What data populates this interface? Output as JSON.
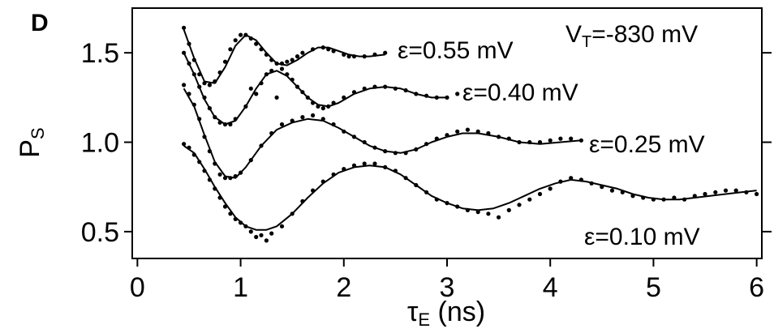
{
  "panel_label": "D",
  "chart_data": {
    "type": "scatter",
    "title": "",
    "xlabel": {
      "symbol": "τ",
      "subscript": "E",
      "unit": " (ns)"
    },
    "ylabel": {
      "symbol": "P",
      "subscript": "S"
    },
    "xlim": [
      -0.05,
      6.05
    ],
    "ylim": [
      0.35,
      1.75
    ],
    "xticks": [
      0,
      1,
      2,
      3,
      4,
      5,
      6
    ],
    "xtick_labels": [
      "0",
      "1",
      "2",
      "3",
      "4",
      "5",
      "6"
    ],
    "yticks": [
      0.5,
      1.0,
      1.5
    ],
    "ytick_labels": [
      "0.5",
      "1.0",
      "1.5"
    ],
    "grid": false,
    "annotations": {
      "vt": {
        "prefix": "V",
        "subscript": "T",
        "value": "=-830 mV"
      }
    },
    "series": [
      {
        "name": "ε=0.55 mV",
        "points": [
          [
            0.45,
            1.64
          ],
          [
            0.5,
            1.55
          ],
          [
            0.55,
            1.46
          ],
          [
            0.6,
            1.38
          ],
          [
            0.65,
            1.33
          ],
          [
            0.7,
            1.32
          ],
          [
            0.75,
            1.34
          ],
          [
            0.8,
            1.39
          ],
          [
            0.85,
            1.45
          ],
          [
            0.9,
            1.52
          ],
          [
            0.95,
            1.57
          ],
          [
            1.0,
            1.6
          ],
          [
            1.05,
            1.6
          ],
          [
            1.1,
            1.58
          ],
          [
            1.15,
            1.55
          ],
          [
            1.2,
            1.52
          ],
          [
            1.25,
            1.49
          ],
          [
            1.3,
            1.46
          ],
          [
            1.35,
            1.44
          ],
          [
            1.4,
            1.44
          ],
          [
            1.45,
            1.45
          ],
          [
            1.5,
            1.46
          ],
          [
            1.55,
            1.48
          ],
          [
            1.6,
            1.5
          ],
          [
            1.7,
            1.52
          ],
          [
            1.8,
            1.53
          ],
          [
            1.85,
            1.52
          ],
          [
            1.9,
            1.51
          ],
          [
            2.0,
            1.49
          ],
          [
            2.05,
            1.48
          ],
          [
            2.1,
            1.48
          ],
          [
            2.2,
            1.48
          ],
          [
            2.3,
            1.49
          ],
          [
            2.4,
            1.5
          ]
        ],
        "fit": [
          [
            0.45,
            1.63
          ],
          [
            0.55,
            1.47
          ],
          [
            0.65,
            1.34
          ],
          [
            0.75,
            1.33
          ],
          [
            0.85,
            1.42
          ],
          [
            0.95,
            1.54
          ],
          [
            1.05,
            1.6
          ],
          [
            1.15,
            1.57
          ],
          [
            1.25,
            1.5
          ],
          [
            1.35,
            1.44
          ],
          [
            1.45,
            1.43
          ],
          [
            1.55,
            1.46
          ],
          [
            1.65,
            1.5
          ],
          [
            1.75,
            1.53
          ],
          [
            1.85,
            1.53
          ],
          [
            1.95,
            1.51
          ],
          [
            2.05,
            1.49
          ],
          [
            2.15,
            1.48
          ],
          [
            2.25,
            1.48
          ],
          [
            2.4,
            1.49
          ]
        ]
      },
      {
        "name": "ε=0.40 mV",
        "points": [
          [
            0.45,
            1.5
          ],
          [
            0.5,
            1.44
          ],
          [
            0.55,
            1.38
          ],
          [
            0.6,
            1.31
          ],
          [
            0.65,
            1.25
          ],
          [
            0.7,
            1.19
          ],
          [
            0.75,
            1.14
          ],
          [
            0.8,
            1.11
          ],
          [
            0.85,
            1.1
          ],
          [
            0.9,
            1.1
          ],
          [
            0.95,
            1.13
          ],
          [
            1.05,
            1.2
          ],
          [
            1.1,
            1.3
          ],
          [
            1.15,
            1.27
          ],
          [
            1.2,
            1.33
          ],
          [
            1.25,
            1.38
          ],
          [
            1.3,
            1.4
          ],
          [
            1.4,
            1.41
          ],
          [
            1.45,
            1.38
          ],
          [
            1.5,
            1.35
          ],
          [
            1.55,
            1.31
          ],
          [
            1.6,
            1.28
          ],
          [
            1.65,
            1.25
          ],
          [
            1.7,
            1.22
          ],
          [
            1.75,
            1.2
          ],
          [
            1.8,
            1.19
          ],
          [
            1.85,
            1.2
          ],
          [
            1.9,
            1.22
          ],
          [
            2.0,
            1.25
          ],
          [
            2.1,
            1.28
          ],
          [
            2.2,
            1.3
          ],
          [
            2.3,
            1.31
          ],
          [
            2.4,
            1.31
          ],
          [
            2.5,
            1.3
          ],
          [
            2.6,
            1.29
          ],
          [
            2.7,
            1.27
          ],
          [
            2.8,
            1.26
          ],
          [
            2.9,
            1.25
          ],
          [
            3.0,
            1.25
          ],
          [
            3.1,
            1.27
          ]
        ],
        "fit": [
          [
            0.45,
            1.5
          ],
          [
            0.55,
            1.38
          ],
          [
            0.65,
            1.24
          ],
          [
            0.75,
            1.14
          ],
          [
            0.85,
            1.1
          ],
          [
            0.95,
            1.12
          ],
          [
            1.05,
            1.2
          ],
          [
            1.15,
            1.3
          ],
          [
            1.25,
            1.38
          ],
          [
            1.35,
            1.4
          ],
          [
            1.45,
            1.37
          ],
          [
            1.55,
            1.31
          ],
          [
            1.65,
            1.25
          ],
          [
            1.75,
            1.21
          ],
          [
            1.85,
            1.2
          ],
          [
            1.95,
            1.22
          ],
          [
            2.1,
            1.27
          ],
          [
            2.25,
            1.3
          ],
          [
            2.4,
            1.31
          ],
          [
            2.55,
            1.3
          ],
          [
            2.7,
            1.27
          ],
          [
            2.85,
            1.25
          ],
          [
            3.0,
            1.25
          ]
        ]
      },
      {
        "name": "ε=0.25 mV",
        "points": [
          [
            0.45,
            1.32
          ],
          [
            0.5,
            1.27
          ],
          [
            0.55,
            1.21
          ],
          [
            0.6,
            1.13
          ],
          [
            0.65,
            1.03
          ],
          [
            0.7,
            0.95
          ],
          [
            0.75,
            0.88
          ],
          [
            0.8,
            0.82
          ],
          [
            0.85,
            0.8
          ],
          [
            0.9,
            0.8
          ],
          [
            0.95,
            0.81
          ],
          [
            1.0,
            0.83
          ],
          [
            1.1,
            0.9
          ],
          [
            1.2,
            0.98
          ],
          [
            1.3,
            1.05
          ],
          [
            1.35,
            1.25
          ],
          [
            1.4,
            1.1
          ],
          [
            1.5,
            1.12
          ],
          [
            1.6,
            1.14
          ],
          [
            1.7,
            1.15
          ],
          [
            1.8,
            1.13
          ],
          [
            1.9,
            1.1
          ],
          [
            2.0,
            1.06
          ],
          [
            2.1,
            1.03
          ],
          [
            2.2,
            1.0
          ],
          [
            2.3,
            0.97
          ],
          [
            2.4,
            0.95
          ],
          [
            2.5,
            0.94
          ],
          [
            2.6,
            0.94
          ],
          [
            2.7,
            0.96
          ],
          [
            2.8,
            0.99
          ],
          [
            2.9,
            1.02
          ],
          [
            3.0,
            1.04
          ],
          [
            3.1,
            1.06
          ],
          [
            3.2,
            1.07
          ],
          [
            3.3,
            1.06
          ],
          [
            3.4,
            1.05
          ],
          [
            3.5,
            1.03
          ],
          [
            3.6,
            1.02
          ],
          [
            3.7,
            1.0
          ],
          [
            3.8,
            1.0
          ],
          [
            3.9,
            1.0
          ],
          [
            4.0,
            1.01
          ],
          [
            4.1,
            1.02
          ],
          [
            4.2,
            1.02
          ],
          [
            4.3,
            1.01
          ]
        ],
        "fit": [
          [
            0.45,
            1.3
          ],
          [
            0.55,
            1.2
          ],
          [
            0.65,
            1.04
          ],
          [
            0.75,
            0.89
          ],
          [
            0.85,
            0.81
          ],
          [
            0.95,
            0.8
          ],
          [
            1.05,
            0.86
          ],
          [
            1.2,
            0.98
          ],
          [
            1.35,
            1.07
          ],
          [
            1.5,
            1.11
          ],
          [
            1.65,
            1.13
          ],
          [
            1.8,
            1.12
          ],
          [
            1.95,
            1.08
          ],
          [
            2.1,
            1.03
          ],
          [
            2.25,
            0.98
          ],
          [
            2.4,
            0.95
          ],
          [
            2.55,
            0.94
          ],
          [
            2.7,
            0.96
          ],
          [
            2.85,
            1.0
          ],
          [
            3.0,
            1.03
          ],
          [
            3.15,
            1.05
          ],
          [
            3.3,
            1.05
          ],
          [
            3.5,
            1.03
          ],
          [
            3.7,
            1.0
          ],
          [
            3.9,
            0.99
          ],
          [
            4.1,
            1.0
          ],
          [
            4.3,
            1.01
          ]
        ]
      },
      {
        "name": "ε=0.10 mV",
        "points": [
          [
            0.45,
            0.99
          ],
          [
            0.5,
            0.97
          ],
          [
            0.55,
            0.93
          ],
          [
            0.6,
            0.89
          ],
          [
            0.65,
            0.84
          ],
          [
            0.7,
            0.79
          ],
          [
            0.75,
            0.74
          ],
          [
            0.8,
            0.69
          ],
          [
            0.85,
            0.64
          ],
          [
            0.9,
            0.6
          ],
          [
            0.95,
            0.57
          ],
          [
            1.0,
            0.55
          ],
          [
            1.05,
            0.53
          ],
          [
            1.1,
            0.5
          ],
          [
            1.15,
            0.47
          ],
          [
            1.2,
            0.48
          ],
          [
            1.25,
            0.45
          ],
          [
            1.3,
            0.49
          ],
          [
            1.4,
            0.53
          ],
          [
            1.5,
            0.6
          ],
          [
            1.6,
            0.67
          ],
          [
            1.7,
            0.73
          ],
          [
            1.8,
            0.78
          ],
          [
            1.9,
            0.82
          ],
          [
            2.0,
            0.85
          ],
          [
            2.1,
            0.87
          ],
          [
            2.2,
            0.88
          ],
          [
            2.3,
            0.88
          ],
          [
            2.4,
            0.86
          ],
          [
            2.5,
            0.84
          ],
          [
            2.6,
            0.8
          ],
          [
            2.7,
            0.76
          ],
          [
            2.8,
            0.72
          ],
          [
            2.9,
            0.68
          ],
          [
            3.0,
            0.66
          ],
          [
            3.1,
            0.64
          ],
          [
            3.2,
            0.62
          ],
          [
            3.3,
            0.61
          ],
          [
            3.4,
            0.6
          ],
          [
            3.5,
            0.58
          ],
          [
            3.6,
            0.62
          ],
          [
            3.7,
            0.65
          ],
          [
            3.8,
            0.68
          ],
          [
            3.9,
            0.71
          ],
          [
            4.0,
            0.74
          ],
          [
            4.1,
            0.78
          ],
          [
            4.2,
            0.8
          ],
          [
            4.3,
            0.79
          ],
          [
            4.4,
            0.77
          ],
          [
            4.5,
            0.75
          ],
          [
            4.6,
            0.73
          ],
          [
            4.7,
            0.72
          ],
          [
            4.8,
            0.7
          ],
          [
            4.9,
            0.69
          ],
          [
            5.0,
            0.68
          ],
          [
            5.1,
            0.68
          ],
          [
            5.2,
            0.69
          ],
          [
            5.3,
            0.68
          ],
          [
            5.4,
            0.7
          ],
          [
            5.5,
            0.71
          ],
          [
            5.6,
            0.72
          ],
          [
            5.7,
            0.73
          ],
          [
            5.8,
            0.73
          ],
          [
            5.9,
            0.72
          ],
          [
            6.0,
            0.71
          ]
        ],
        "fit": [
          [
            0.45,
            0.98
          ],
          [
            0.55,
            0.94
          ],
          [
            0.65,
            0.85
          ],
          [
            0.75,
            0.75
          ],
          [
            0.85,
            0.66
          ],
          [
            0.95,
            0.58
          ],
          [
            1.05,
            0.53
          ],
          [
            1.15,
            0.51
          ],
          [
            1.25,
            0.51
          ],
          [
            1.35,
            0.53
          ],
          [
            1.5,
            0.6
          ],
          [
            1.65,
            0.69
          ],
          [
            1.8,
            0.77
          ],
          [
            1.95,
            0.83
          ],
          [
            2.1,
            0.86
          ],
          [
            2.25,
            0.87
          ],
          [
            2.4,
            0.86
          ],
          [
            2.55,
            0.82
          ],
          [
            2.7,
            0.76
          ],
          [
            2.85,
            0.7
          ],
          [
            3.0,
            0.66
          ],
          [
            3.15,
            0.63
          ],
          [
            3.3,
            0.62
          ],
          [
            3.45,
            0.63
          ],
          [
            3.6,
            0.66
          ],
          [
            3.75,
            0.7
          ],
          [
            3.9,
            0.74
          ],
          [
            4.05,
            0.77
          ],
          [
            4.2,
            0.79
          ],
          [
            4.35,
            0.78
          ],
          [
            4.5,
            0.76
          ],
          [
            4.65,
            0.74
          ],
          [
            4.8,
            0.71
          ],
          [
            4.95,
            0.69
          ],
          [
            5.1,
            0.68
          ],
          [
            5.25,
            0.68
          ],
          [
            5.4,
            0.69
          ],
          [
            5.55,
            0.7
          ],
          [
            5.7,
            0.71
          ],
          [
            5.85,
            0.72
          ],
          [
            6.0,
            0.73
          ]
        ]
      }
    ]
  }
}
